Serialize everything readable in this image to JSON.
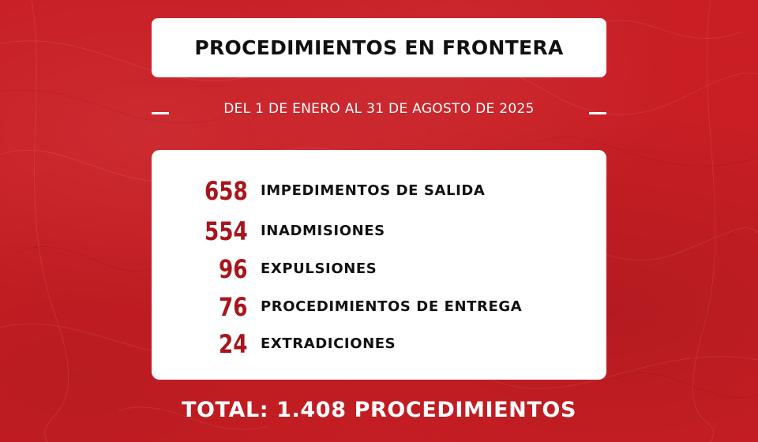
{
  "header": {
    "title": "PROCEDIMIENTOS EN FRONTERA",
    "date_range": "DEL 1 DE ENERO AL 31 DE AGOSTO DE 2025"
  },
  "stats": [
    {
      "value": "658",
      "label": "IMPEDIMENTOS DE SALIDA"
    },
    {
      "value": "554",
      "label": "INADMISIONES"
    },
    {
      "value": "96",
      "label": "EXPULSIONES"
    },
    {
      "value": "76",
      "label": "PROCEDIMIENTOS DE ENTREGA"
    },
    {
      "value": "24",
      "label": "EXTRADICIONES"
    }
  ],
  "footer": {
    "total": "TOTAL: 1.408 PROCEDIMIENTOS"
  },
  "colors": {
    "background": "#c81e24",
    "number": "#a8151b",
    "panel": "#ffffff",
    "text_dark": "#111111"
  }
}
